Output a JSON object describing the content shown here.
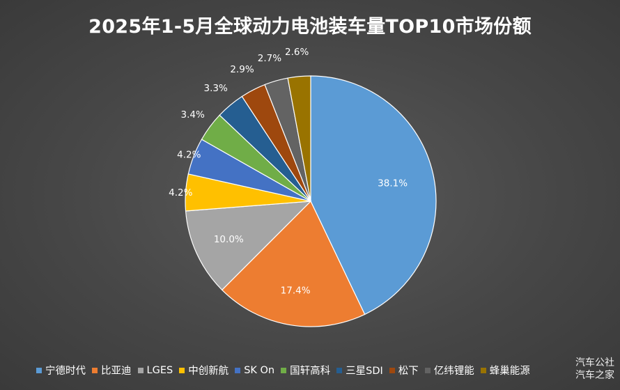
{
  "chart_data": {
    "type": "pie",
    "title": "2025年1-5月全球动力电池装车量TOP10市场份额",
    "slices": [
      {
        "label": "宁德时代",
        "value": 38.1,
        "display": "38.1%",
        "color": "#5b9bd5"
      },
      {
        "label": "比亚迪",
        "value": 17.4,
        "display": "17.4%",
        "color": "#ed7d31"
      },
      {
        "label": "LGES",
        "value": 10.0,
        "display": "10.0%",
        "color": "#a5a5a5"
      },
      {
        "label": "中创新航",
        "value": 4.2,
        "display": "4.2%",
        "color": "#ffc000"
      },
      {
        "label": "SK On",
        "value": 4.2,
        "display": "4.2%",
        "color": "#4472c4"
      },
      {
        "label": "国轩高科",
        "value": 3.4,
        "display": "3.4%",
        "color": "#70ad47"
      },
      {
        "label": "三星SDI",
        "value": 3.3,
        "display": "3.3%",
        "color": "#255e91"
      },
      {
        "label": "松下",
        "value": 2.9,
        "display": "2.9%",
        "color": "#9e480e"
      },
      {
        "label": "亿纬锂能",
        "value": 2.7,
        "display": "2.7%",
        "color": "#636363"
      },
      {
        "label": "蜂巢能源",
        "value": 2.6,
        "display": "2.6%",
        "color": "#997300"
      }
    ],
    "legend_position": "bottom"
  },
  "watermark": {
    "line1": "汽车公社",
    "line2": "汽车之家"
  }
}
